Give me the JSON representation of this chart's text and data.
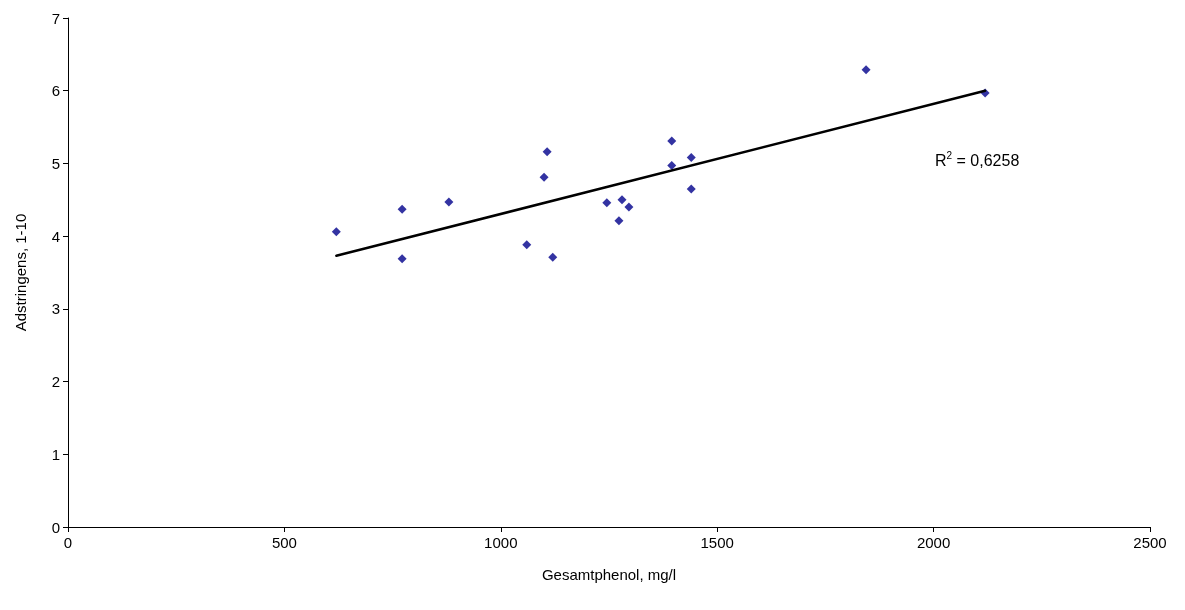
{
  "chart_data": {
    "type": "scatter",
    "xlabel": "Gesamtphenol, mg/l",
    "ylabel": "Adstringens, 1-10",
    "xlim": [
      0,
      2500
    ],
    "xticks": [
      0,
      500,
      1000,
      1500,
      2000,
      2500
    ],
    "ylim": [
      0,
      7
    ],
    "yticks": [
      0,
      1,
      2,
      3,
      4,
      5,
      6,
      7
    ],
    "grid": false,
    "marker": "diamond",
    "annotations": [
      "R$^{2}$ = 0,6258"
    ],
    "series": [
      {
        "color": "#00008b",
        "x": [
          620,
          772,
          772,
          880,
          1060,
          1100,
          1107,
          1120,
          1245,
          1273,
          1280,
          1296,
          1395,
          1395,
          1440,
          1440,
          1844,
          2119
        ],
        "values": [
          4.06,
          4.37,
          3.69,
          4.47,
          3.88,
          4.81,
          5.16,
          3.71,
          4.46,
          4.21,
          4.5,
          4.4,
          5.31,
          4.97,
          5.08,
          4.65,
          6.29,
          5.97
        ]
      },
      {
        "type": "line",
        "color": "#000000",
        "marker": "none",
        "line_style": "solid",
        "x": [
          620,
          2119
        ],
        "values": [
          3.73,
          6.0
        ]
      }
    ]
  }
}
